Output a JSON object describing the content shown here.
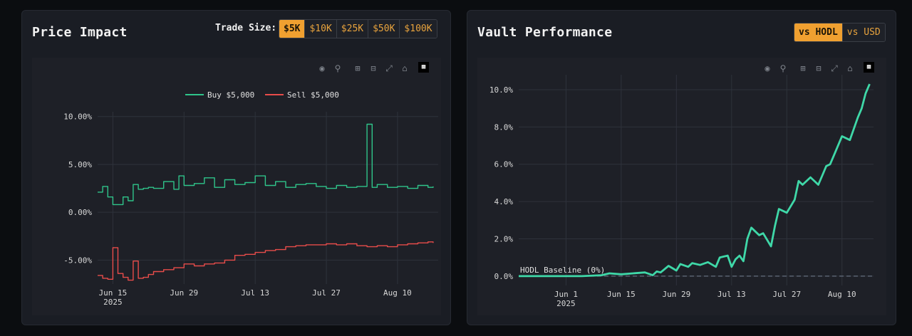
{
  "price_impact": {
    "title": "Price Impact",
    "trade_size_label": "Trade Size:",
    "trade_sizes": [
      "$5K",
      "$10K",
      "$25K",
      "$50K",
      "$100K"
    ],
    "active_trade_size": "$5K"
  },
  "vault": {
    "title": "Vault Performance",
    "compare_options": [
      "vs HODL",
      "vs USD"
    ],
    "active_compare": "vs HODL"
  },
  "toolbar_icons": [
    "camera-icon",
    "zoom-icon",
    "zoom-in-icon",
    "zoom-out-icon",
    "autoscale-icon",
    "home-icon",
    "plotly-logo-icon"
  ],
  "colors": {
    "buy": "#2fc48a",
    "sell": "#e84c4a",
    "vault_line": "#3fd8a8",
    "accent": "#f0a030"
  },
  "chart_data": [
    {
      "type": "line",
      "x_ticks": [
        "Jun 15\n2025",
        "Jun 29",
        "Jul 13",
        "Jul 27",
        "Aug 10"
      ],
      "xlim": [
        "2025-06-12",
        "2025-08-18"
      ],
      "y_ticks": [
        "10.00%",
        "5.00%",
        "0.00%",
        "-5.00%"
      ],
      "ylim": [
        -7.5,
        10.5
      ],
      "legend_position": "top-center",
      "grid": true,
      "series": [
        {
          "name": "Buy $5,000",
          "color": "#2fc48a",
          "x": [
            "2025-06-12",
            "2025-06-13",
            "2025-06-14",
            "2025-06-15",
            "2025-06-16",
            "2025-06-17",
            "2025-06-18",
            "2025-06-19",
            "2025-06-20",
            "2025-06-21",
            "2025-06-22",
            "2025-06-23",
            "2025-06-25",
            "2025-06-27",
            "2025-06-28",
            "2025-06-29",
            "2025-07-01",
            "2025-07-03",
            "2025-07-05",
            "2025-07-07",
            "2025-07-09",
            "2025-07-11",
            "2025-07-13",
            "2025-07-15",
            "2025-07-17",
            "2025-07-19",
            "2025-07-21",
            "2025-07-23",
            "2025-07-25",
            "2025-07-27",
            "2025-07-29",
            "2025-07-31",
            "2025-08-02",
            "2025-08-04",
            "2025-08-05",
            "2025-08-06",
            "2025-08-08",
            "2025-08-10",
            "2025-08-12",
            "2025-08-14",
            "2025-08-16",
            "2025-08-17"
          ],
          "y": [
            2.1,
            2.7,
            1.6,
            0.8,
            0.8,
            1.6,
            1.2,
            2.9,
            2.4,
            2.5,
            2.6,
            2.5,
            3.2,
            2.4,
            3.8,
            2.8,
            3.0,
            3.6,
            2.6,
            3.4,
            2.9,
            3.1,
            3.8,
            2.8,
            3.2,
            2.6,
            2.9,
            3.0,
            2.7,
            2.5,
            2.8,
            2.6,
            2.7,
            9.2,
            2.6,
            2.9,
            2.6,
            2.7,
            2.5,
            2.8,
            2.6,
            2.7
          ]
        },
        {
          "name": "Sell $5,000",
          "color": "#e84c4a",
          "x": [
            "2025-06-12",
            "2025-06-13",
            "2025-06-14",
            "2025-06-15",
            "2025-06-16",
            "2025-06-17",
            "2025-06-18",
            "2025-06-19",
            "2025-06-20",
            "2025-06-21",
            "2025-06-22",
            "2025-06-23",
            "2025-06-25",
            "2025-06-27",
            "2025-06-29",
            "2025-07-01",
            "2025-07-03",
            "2025-07-05",
            "2025-07-07",
            "2025-07-09",
            "2025-07-11",
            "2025-07-13",
            "2025-07-15",
            "2025-07-17",
            "2025-07-19",
            "2025-07-21",
            "2025-07-23",
            "2025-07-25",
            "2025-07-27",
            "2025-07-29",
            "2025-07-31",
            "2025-08-02",
            "2025-08-04",
            "2025-08-06",
            "2025-08-08",
            "2025-08-10",
            "2025-08-12",
            "2025-08-14",
            "2025-08-16",
            "2025-08-17"
          ],
          "y": [
            -6.6,
            -6.9,
            -7.0,
            -3.7,
            -6.4,
            -6.8,
            -7.1,
            -5.1,
            -6.9,
            -6.8,
            -6.5,
            -6.2,
            -6.0,
            -5.8,
            -5.4,
            -5.6,
            -5.4,
            -5.3,
            -5.0,
            -4.5,
            -4.4,
            -4.2,
            -4.0,
            -3.9,
            -3.6,
            -3.5,
            -3.4,
            -3.4,
            -3.3,
            -3.4,
            -3.3,
            -3.5,
            -3.6,
            -3.5,
            -3.6,
            -3.4,
            -3.3,
            -3.2,
            -3.1,
            -3.2
          ]
        }
      ]
    },
    {
      "type": "line",
      "x_ticks": [
        "Jun 1\n2025",
        "Jun 15",
        "Jun 29",
        "Jul 13",
        "Jul 27",
        "Aug 10"
      ],
      "xlim": [
        "2025-05-20",
        "2025-08-18"
      ],
      "y_ticks": [
        "10.0%",
        "8.0%",
        "6.0%",
        "4.0%",
        "2.0%",
        "0.0%"
      ],
      "ylim": [
        -0.5,
        10.8
      ],
      "baseline_label": "HODL Baseline (0%)",
      "grid": true,
      "series": [
        {
          "color": "#3fd8a8",
          "x": [
            "2025-05-20",
            "2025-05-28",
            "2025-06-05",
            "2025-06-10",
            "2025-06-12",
            "2025-06-15",
            "2025-06-18",
            "2025-06-21",
            "2025-06-23",
            "2025-06-24",
            "2025-06-25",
            "2025-06-27",
            "2025-06-29",
            "2025-06-30",
            "2025-07-02",
            "2025-07-03",
            "2025-07-05",
            "2025-07-07",
            "2025-07-09",
            "2025-07-10",
            "2025-07-12",
            "2025-07-13",
            "2025-07-14",
            "2025-07-15",
            "2025-07-16",
            "2025-07-17",
            "2025-07-18",
            "2025-07-20",
            "2025-07-21",
            "2025-07-23",
            "2025-07-24",
            "2025-07-25",
            "2025-07-26",
            "2025-07-27",
            "2025-07-29",
            "2025-07-30",
            "2025-07-31",
            "2025-08-02",
            "2025-08-04",
            "2025-08-05",
            "2025-08-06",
            "2025-08-07",
            "2025-08-08",
            "2025-08-10",
            "2025-08-12",
            "2025-08-14",
            "2025-08-15",
            "2025-08-16",
            "2025-08-17"
          ],
          "y": [
            0,
            0,
            0,
            0.05,
            0.15,
            0.1,
            0.15,
            0.2,
            0.05,
            0.25,
            0.2,
            0.55,
            0.3,
            0.65,
            0.5,
            0.7,
            0.6,
            0.75,
            0.5,
            1.0,
            1.1,
            0.5,
            0.9,
            1.1,
            0.8,
            2.0,
            2.6,
            2.2,
            2.3,
            1.6,
            2.7,
            3.6,
            3.5,
            3.4,
            4.1,
            5.1,
            4.9,
            5.3,
            4.9,
            5.4,
            5.9,
            6.0,
            6.5,
            7.5,
            7.3,
            8.5,
            9.0,
            9.8,
            10.3
          ]
        }
      ]
    }
  ]
}
